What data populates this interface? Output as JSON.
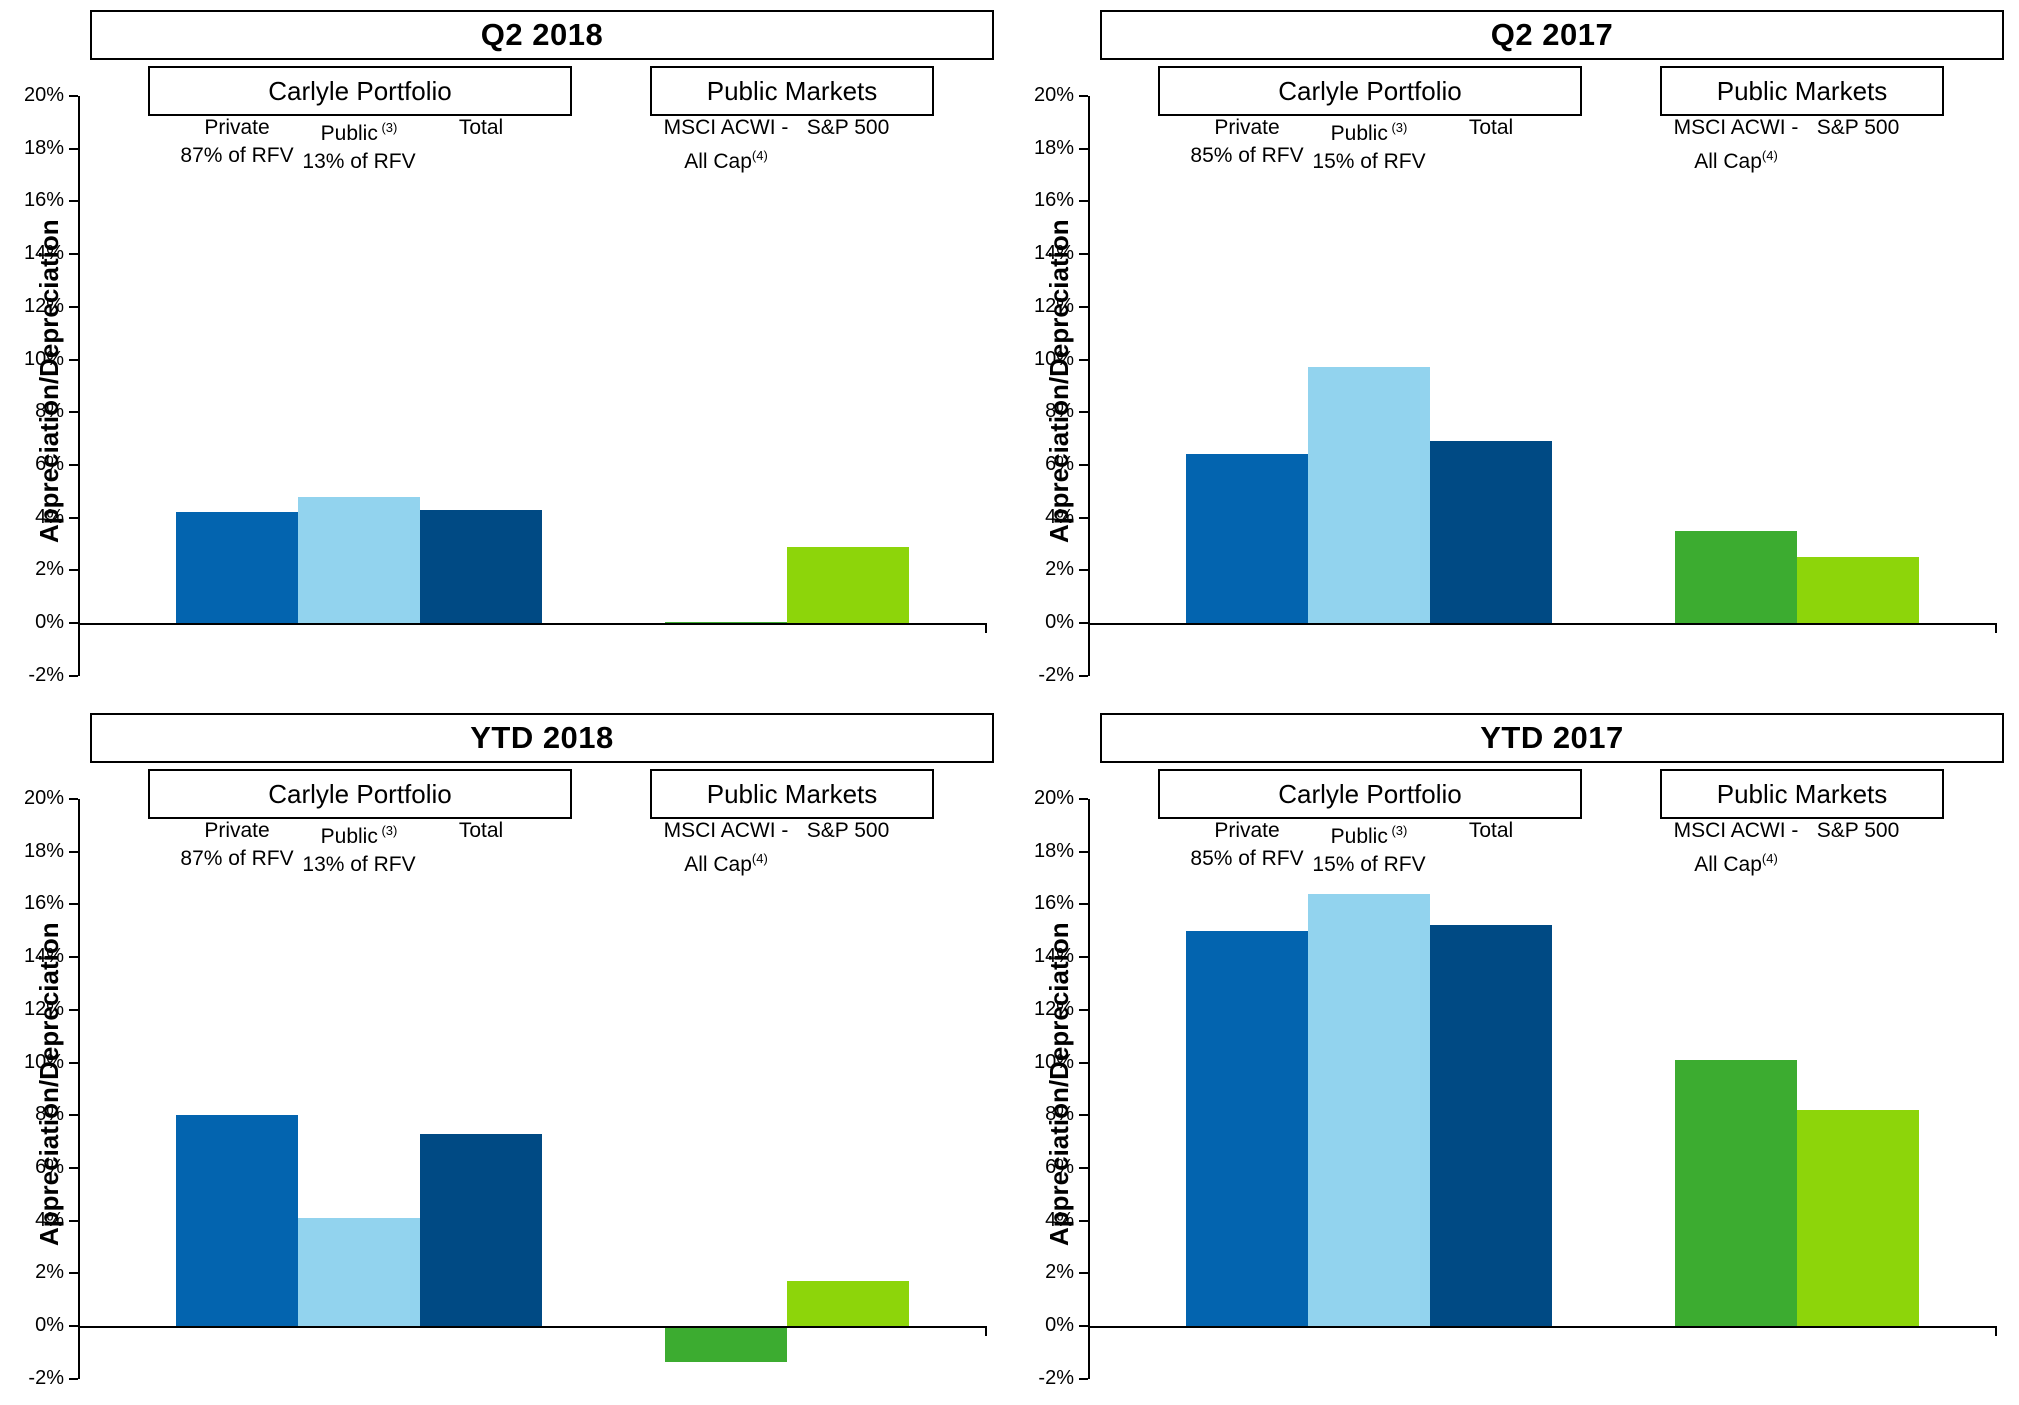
{
  "axis": {
    "ylabel": "Appreciation/Depreciation",
    "ymin": -2,
    "ymax": 20,
    "tick_step": 2,
    "tick_labels": [
      "20%",
      "18%",
      "16%",
      "14%",
      "12%",
      "10%",
      "8%",
      "6%",
      "4%",
      "2%",
      "0%",
      "-2%"
    ]
  },
  "colors": {
    "private": "#0364AF",
    "public_carlyle": "#92D3EE",
    "total": "#004A84",
    "msci": "#3CAC30",
    "sp500": "#8DD50A",
    "axis_line": "#000000",
    "box_border": "#000000",
    "background": "#FFFFFF",
    "text": "#000000"
  },
  "chart_data": [
    {
      "type": "bar",
      "title": "Q2 2018",
      "ylabel": "Appreciation/Depreciation",
      "ylim": [
        -2,
        20
      ],
      "grid": false,
      "groups": [
        {
          "label": "Carlyle Portfolio",
          "bars": [
            {
              "name": "Private 87% of RFV",
              "line1": "Private",
              "sup1": "",
              "line2": "87% of RFV",
              "sup2": "",
              "color_key": "private",
              "value": 4.2
            },
            {
              "name": "Public 13% of RFV",
              "line1": "Public",
              "sup1": " (3)",
              "line2": "13% of RFV",
              "sup2": "",
              "color_key": "public_carlyle",
              "value": 4.8
            },
            {
              "name": "Total",
              "line1": "Total",
              "sup1": "",
              "line2": "",
              "sup2": "",
              "color_key": "total",
              "value": 4.3
            }
          ]
        },
        {
          "label": "Public Markets",
          "bars": [
            {
              "name": "MSCI ACWI - All Cap",
              "line1": "MSCI ACWI -",
              "sup1": "",
              "line2": "All Cap",
              "sup2": "(4)",
              "color_key": "msci",
              "value": 0.05
            },
            {
              "name": "S&P 500",
              "line1": "S&P 500",
              "sup1": "",
              "line2": "",
              "sup2": "",
              "color_key": "sp500",
              "value": 2.9
            }
          ]
        }
      ]
    },
    {
      "type": "bar",
      "title": "Q2 2017",
      "ylabel": "Appreciation/Depreciation",
      "ylim": [
        -2,
        20
      ],
      "grid": false,
      "groups": [
        {
          "label": "Carlyle Portfolio",
          "bars": [
            {
              "name": "Private 85% of RFV",
              "line1": "Private",
              "sup1": "",
              "line2": "85% of RFV",
              "sup2": "",
              "color_key": "private",
              "value": 6.4
            },
            {
              "name": "Public 15% of RFV",
              "line1": "Public",
              "sup1": " (3)",
              "line2": "15% of RFV",
              "sup2": "",
              "color_key": "public_carlyle",
              "value": 9.7
            },
            {
              "name": "Total",
              "line1": "Total",
              "sup1": "",
              "line2": "",
              "sup2": "",
              "color_key": "total",
              "value": 6.9
            }
          ]
        },
        {
          "label": "Public Markets",
          "bars": [
            {
              "name": "MSCI ACWI - All Cap",
              "line1": "MSCI ACWI -",
              "sup1": "",
              "line2": "All Cap",
              "sup2": "(4)",
              "color_key": "msci",
              "value": 3.5
            },
            {
              "name": "S&P 500",
              "line1": "S&P 500",
              "sup1": "",
              "line2": "",
              "sup2": "",
              "color_key": "sp500",
              "value": 2.5
            }
          ]
        }
      ]
    },
    {
      "type": "bar",
      "title": "YTD 2018",
      "ylabel": "Appreciation/Depreciation",
      "ylim": [
        -2,
        20
      ],
      "grid": false,
      "groups": [
        {
          "label": "Carlyle Portfolio",
          "bars": [
            {
              "name": "Private 87% of RFV",
              "line1": "Private",
              "sup1": "",
              "line2": "87% of RFV",
              "sup2": "",
              "color_key": "private",
              "value": 8.0
            },
            {
              "name": "Public 13% of RFV",
              "line1": "Public",
              "sup1": " (3)",
              "line2": "13% of RFV",
              "sup2": "",
              "color_key": "public_carlyle",
              "value": 4.1
            },
            {
              "name": "Total",
              "line1": "Total",
              "sup1": "",
              "line2": "",
              "sup2": "",
              "color_key": "total",
              "value": 7.3
            }
          ]
        },
        {
          "label": "Public Markets",
          "bars": [
            {
              "name": "MSCI ACWI - All Cap",
              "line1": "MSCI ACWI -",
              "sup1": "",
              "line2": "All Cap",
              "sup2": "(4)",
              "color_key": "msci",
              "value": -1.3
            },
            {
              "name": "S&P 500",
              "line1": "S&P 500",
              "sup1": "",
              "line2": "",
              "sup2": "",
              "color_key": "sp500",
              "value": 1.7
            }
          ]
        }
      ]
    },
    {
      "type": "bar",
      "title": "YTD 2017",
      "ylabel": "Appreciation/Depreciation",
      "ylim": [
        -2,
        20
      ],
      "grid": false,
      "groups": [
        {
          "label": "Carlyle Portfolio",
          "bars": [
            {
              "name": "Private 85% of RFV",
              "line1": "Private",
              "sup1": "",
              "line2": "85% of RFV",
              "sup2": "",
              "color_key": "private",
              "value": 15.0
            },
            {
              "name": "Public 15% of RFV",
              "line1": "Public",
              "sup1": " (3)",
              "line2": "15% of RFV",
              "sup2": "",
              "color_key": "public_carlyle",
              "value": 16.4
            },
            {
              "name": "Total",
              "line1": "Total",
              "sup1": "",
              "line2": "",
              "sup2": "",
              "color_key": "total",
              "value": 15.2
            }
          ]
        },
        {
          "label": "Public Markets",
          "bars": [
            {
              "name": "MSCI ACWI - All Cap",
              "line1": "MSCI ACWI -",
              "sup1": "",
              "line2": "All Cap",
              "sup2": "(4)",
              "color_key": "msci",
              "value": 10.1
            },
            {
              "name": "S&P 500",
              "line1": "S&P 500",
              "sup1": "",
              "line2": "",
              "sup2": "",
              "color_key": "sp500",
              "value": 8.2
            }
          ]
        }
      ]
    }
  ]
}
